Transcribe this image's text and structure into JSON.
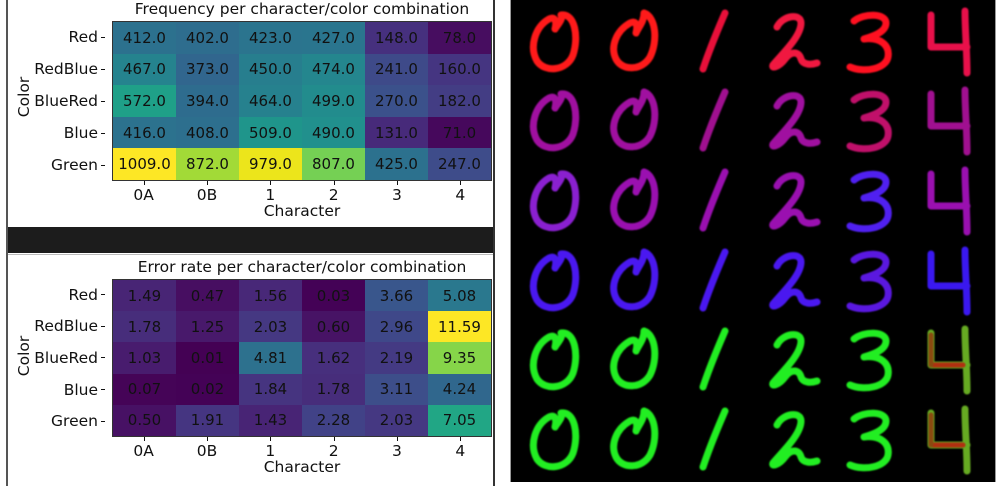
{
  "chart_data": [
    {
      "type": "heatmap",
      "title": "Frequency per character/color combination",
      "xlabel": "Character",
      "ylabel": "Color",
      "x": [
        "0A",
        "0B",
        "1",
        "2",
        "3",
        "4"
      ],
      "y": [
        "Red",
        "RedBlue",
        "BlueRed",
        "Blue",
        "Green"
      ],
      "values": [
        [
          412.0,
          402.0,
          423.0,
          427.0,
          148.0,
          78.0
        ],
        [
          467.0,
          373.0,
          450.0,
          474.0,
          241.0,
          160.0
        ],
        [
          572.0,
          394.0,
          464.0,
          499.0,
          270.0,
          182.0
        ],
        [
          416.0,
          408.0,
          509.0,
          490.0,
          131.0,
          71.0
        ],
        [
          1009.0,
          872.0,
          979.0,
          807.0,
          425.0,
          247.0
        ]
      ],
      "labels": [
        [
          "412.0",
          "402.0",
          "423.0",
          "427.0",
          "148.0",
          "78.0"
        ],
        [
          "467.0",
          "373.0",
          "450.0",
          "474.0",
          "241.0",
          "160.0"
        ],
        [
          "572.0",
          "394.0",
          "464.0",
          "499.0",
          "270.0",
          "182.0"
        ],
        [
          "416.0",
          "408.0",
          "509.0",
          "490.0",
          "131.0",
          "71.0"
        ],
        [
          "1009.0",
          "872.0",
          "979.0",
          "807.0",
          "425.0",
          "247.0"
        ]
      ],
      "colormap": "viridis",
      "colors": [
        [
          "#2c718e",
          "#2e6d8e",
          "#2b748e",
          "#2a758e",
          "#46307e",
          "#470d60"
        ],
        [
          "#25838e",
          "#31668e",
          "#277e8e",
          "#24868e",
          "#3e4a89",
          "#453581"
        ],
        [
          "#1fa088",
          "#2e6c8e",
          "#26818e",
          "#228c8d",
          "#3b518b",
          "#433d84"
        ],
        [
          "#2c728e",
          "#2d6f8e",
          "#1f958b",
          "#21908d",
          "#472a7a",
          "#46085c"
        ],
        [
          "#fde725",
          "#a2da37",
          "#ece51b",
          "#75d054",
          "#2c718e",
          "#3e4c8a"
        ]
      ],
      "text_color": "#111111"
    },
    {
      "type": "heatmap",
      "title": "Error rate per character/color combination",
      "xlabel": "Character",
      "ylabel": "Color",
      "x": [
        "0A",
        "0B",
        "1",
        "2",
        "3",
        "4"
      ],
      "y": [
        "Red",
        "RedBlue",
        "BlueRed",
        "Blue",
        "Green"
      ],
      "values": [
        [
          1.49,
          0.47,
          1.56,
          0.03,
          3.66,
          5.08
        ],
        [
          1.78,
          1.25,
          2.03,
          0.6,
          2.96,
          11.59
        ],
        [
          1.03,
          0.01,
          4.81,
          1.62,
          2.19,
          9.35
        ],
        [
          0.07,
          0.02,
          1.84,
          1.78,
          3.11,
          4.24
        ],
        [
          0.5,
          1.91,
          1.43,
          2.28,
          2.03,
          7.05
        ]
      ],
      "labels": [
        [
          "1.49",
          "0.47",
          "1.56",
          "0.03",
          "3.66",
          "5.08"
        ],
        [
          "1.78",
          "1.25",
          "2.03",
          "0.60",
          "2.96",
          "11.59"
        ],
        [
          "1.03",
          "0.01",
          "4.81",
          "1.62",
          "2.19",
          "9.35"
        ],
        [
          "0.07",
          "0.02",
          "1.84",
          "1.78",
          "3.11",
          "4.24"
        ],
        [
          "0.50",
          "1.91",
          "1.43",
          "2.28",
          "2.03",
          "7.05"
        ]
      ],
      "colormap": "viridis",
      "colors": [
        [
          "#482575",
          "#470e61",
          "#482878",
          "#440256",
          "#39568c",
          "#2a788e"
        ],
        [
          "#472d7b",
          "#48196b",
          "#453882",
          "#471365",
          "#3f4889",
          "#fde725"
        ],
        [
          "#481c6e",
          "#440154",
          "#2d718e",
          "#472f7d",
          "#443a83",
          "#86d549"
        ],
        [
          "#450457",
          "#440256",
          "#463480",
          "#472d7b",
          "#3d4e8a",
          "#30678d"
        ],
        [
          "#471164",
          "#453581",
          "#482475",
          "#414287",
          "#453882",
          "#21a685"
        ]
      ],
      "text_color": "#111111"
    }
  ],
  "charts": {
    "frequency": {
      "title": "Frequency per character/color combination",
      "xlabel": "Character",
      "ylabel": "Color",
      "x": [
        "0A",
        "0B",
        "1",
        "2",
        "3",
        "4"
      ],
      "y": [
        "Red",
        "RedBlue",
        "BlueRed",
        "Blue",
        "Green"
      ]
    },
    "error": {
      "title": "Error rate per character/color combination",
      "xlabel": "Character",
      "ylabel": "Color",
      "x": [
        "0A",
        "0B",
        "1",
        "2",
        "3",
        "4"
      ],
      "y": [
        "Red",
        "RedBlue",
        "BlueRed",
        "Blue",
        "Green"
      ]
    }
  },
  "digit_samples": {
    "background": "#000000",
    "columns": [
      "0",
      "0",
      "1",
      "2",
      "3",
      "4"
    ],
    "rows": [
      {
        "name": "Red",
        "colors": [
          "#ff1a1a",
          "#ff1a1a",
          "#e8103a",
          "#f01840",
          "#ff1020",
          "#e8104a"
        ]
      },
      {
        "name": "RedBlue",
        "colors": [
          "#a010a0",
          "#a010a0",
          "#a01090",
          "#a010a0",
          "#c0106a",
          "#a01090"
        ]
      },
      {
        "name": "BlueRed",
        "colors": [
          "#8a20d0",
          "#9a10b0",
          "#9a10b0",
          "#9a10b0",
          "#5020f0",
          "#9a10b0"
        ]
      },
      {
        "name": "Blue",
        "colors": [
          "#4a18f0",
          "#4a18f0",
          "#4a18f0",
          "#4a18f0",
          "#5a18e0",
          "#3a18f0"
        ]
      },
      {
        "name": "Green",
        "colors": [
          "#22ee22",
          "#22ee22",
          "#22ee22",
          "#22ee22",
          "#22ee22",
          "#66aa22"
        ]
      },
      {
        "name": "Green",
        "colors": [
          "#22ee22",
          "#22ee22",
          "#22ee22",
          "#22ee22",
          "#22ee22",
          "#66aa22"
        ]
      }
    ]
  }
}
